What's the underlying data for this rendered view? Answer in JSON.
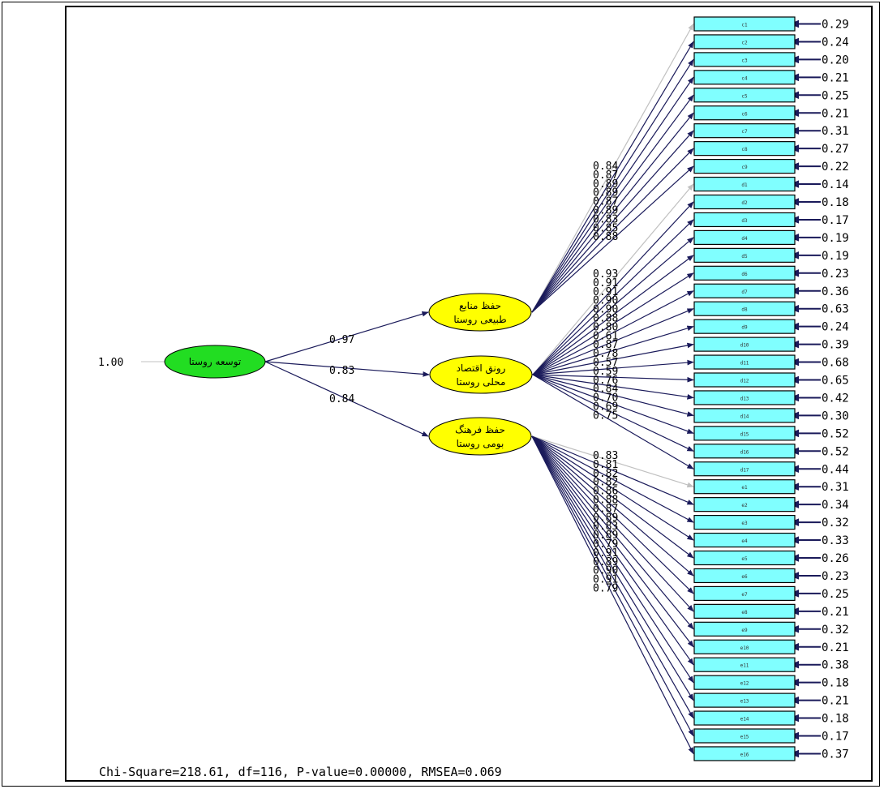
{
  "model": {
    "latent_main": {
      "label": "توسعه روستا",
      "variance": "1.00",
      "color": "#22dd22"
    },
    "factors": [
      {
        "id": "c",
        "label_line1": "حفظ منابع",
        "label_line2": "طبیعی روستا",
        "path_coef": "0.97"
      },
      {
        "id": "d",
        "label_line1": "رونق اقتصاد",
        "label_line2": "محلی روستا",
        "path_coef": "0.83"
      },
      {
        "id": "e",
        "label_line1": "حفظ فرهنگ",
        "label_line2": "بومی روستا",
        "path_coef": "0.84"
      }
    ],
    "indicators": [
      {
        "name": "c1",
        "factor": 0,
        "loading": "0.84",
        "error": "0.29"
      },
      {
        "name": "c2",
        "factor": 0,
        "loading": "0.87",
        "error": "0.24"
      },
      {
        "name": "c3",
        "factor": 0,
        "loading": "0.89",
        "error": "0.20"
      },
      {
        "name": "c4",
        "factor": 0,
        "loading": "0.89",
        "error": "0.21"
      },
      {
        "name": "c5",
        "factor": 0,
        "loading": "0.87",
        "error": "0.25"
      },
      {
        "name": "c6",
        "factor": 0,
        "loading": "0.89",
        "error": "0.21"
      },
      {
        "name": "c7",
        "factor": 0,
        "loading": "0.83",
        "error": "0.31"
      },
      {
        "name": "c8",
        "factor": 0,
        "loading": "0.85",
        "error": "0.27"
      },
      {
        "name": "c9",
        "factor": 0,
        "loading": "0.88",
        "error": "0.22"
      },
      {
        "name": "d1",
        "factor": 1,
        "loading": "0.93",
        "error": "0.14"
      },
      {
        "name": "d2",
        "factor": 1,
        "loading": "0.91",
        "error": "0.18"
      },
      {
        "name": "d3",
        "factor": 1,
        "loading": "0.91",
        "error": "0.17"
      },
      {
        "name": "d4",
        "factor": 1,
        "loading": "0.90",
        "error": "0.19"
      },
      {
        "name": "d5",
        "factor": 1,
        "loading": "0.90",
        "error": "0.19"
      },
      {
        "name": "d6",
        "factor": 1,
        "loading": "0.88",
        "error": "0.23"
      },
      {
        "name": "d7",
        "factor": 1,
        "loading": "0.80",
        "error": "0.36"
      },
      {
        "name": "d8",
        "factor": 1,
        "loading": "0.61",
        "error": "0.63"
      },
      {
        "name": "d9",
        "factor": 1,
        "loading": "0.87",
        "error": "0.24"
      },
      {
        "name": "d10",
        "factor": 1,
        "loading": "0.78",
        "error": "0.39"
      },
      {
        "name": "d11",
        "factor": 1,
        "loading": "0.57",
        "error": "0.68"
      },
      {
        "name": "d12",
        "factor": 1,
        "loading": "0.59",
        "error": "0.65"
      },
      {
        "name": "d13",
        "factor": 1,
        "loading": "0.76",
        "error": "0.42"
      },
      {
        "name": "d14",
        "factor": 1,
        "loading": "0.84",
        "error": "0.30"
      },
      {
        "name": "d15",
        "factor": 1,
        "loading": "0.70",
        "error": "0.52"
      },
      {
        "name": "d16",
        "factor": 1,
        "loading": "0.69",
        "error": "0.52"
      },
      {
        "name": "d17",
        "factor": 1,
        "loading": "0.75",
        "error": "0.44"
      },
      {
        "name": "e1",
        "factor": 2,
        "loading": "0.83",
        "error": "0.31"
      },
      {
        "name": "e2",
        "factor": 2,
        "loading": "0.81",
        "error": "0.34"
      },
      {
        "name": "e3",
        "factor": 2,
        "loading": "0.82",
        "error": "0.32"
      },
      {
        "name": "e4",
        "factor": 2,
        "loading": "0.82",
        "error": "0.33"
      },
      {
        "name": "e5",
        "factor": 2,
        "loading": "0.86",
        "error": "0.26"
      },
      {
        "name": "e6",
        "factor": 2,
        "loading": "0.88",
        "error": "0.23"
      },
      {
        "name": "e7",
        "factor": 2,
        "loading": "0.87",
        "error": "0.25"
      },
      {
        "name": "e8",
        "factor": 2,
        "loading": "0.89",
        "error": "0.21"
      },
      {
        "name": "e9",
        "factor": 2,
        "loading": "0.83",
        "error": "0.32"
      },
      {
        "name": "e10",
        "factor": 2,
        "loading": "0.89",
        "error": "0.21"
      },
      {
        "name": "e11",
        "factor": 2,
        "loading": "0.79",
        "error": "0.38"
      },
      {
        "name": "e12",
        "factor": 2,
        "loading": "0.91",
        "error": "0.18"
      },
      {
        "name": "e13",
        "factor": 2,
        "loading": "0.89",
        "error": "0.21"
      },
      {
        "name": "e14",
        "factor": 2,
        "loading": "0.90",
        "error": "0.18"
      },
      {
        "name": "e15",
        "factor": 2,
        "loading": "0.91",
        "error": "0.17"
      },
      {
        "name": "e16",
        "factor": 2,
        "loading": "0.79",
        "error": "0.37"
      }
    ]
  },
  "fit_statistics": "Chi-Square=218.61, df=116, P-value=0.00000, RMSEA=0.069",
  "colors": {
    "factor_fill": "#ffff00",
    "box_fill": "#80ffff",
    "arrow": "#1a1a5a",
    "fixed_arrow": "#c0c0c0"
  }
}
